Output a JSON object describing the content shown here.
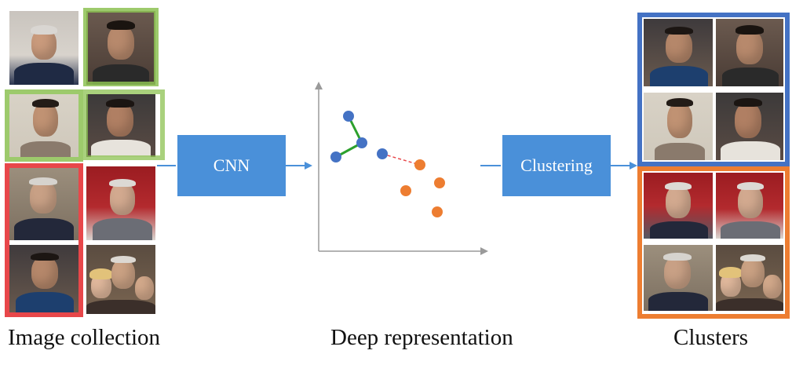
{
  "steps": {
    "cnn_label": "CNN",
    "clustering_label": "Clustering"
  },
  "captions": {
    "input": "Image collection",
    "representation": "Deep representation",
    "output": "Clusters"
  },
  "colors": {
    "process_box": "#4a90d9",
    "arrow": "#4a90d9",
    "cluster_a_frame": "#4472c4",
    "cluster_b_frame": "#ed7d31",
    "highlight_green": "#8cc152",
    "highlight_red": "#e8474a",
    "point_blue": "#4472c4",
    "point_orange": "#ed7d31",
    "link_green": "#2ca02c",
    "link_red": "#e8474a",
    "axis": "#9a9a9a"
  },
  "icons": {
    "input_photos": "face-photo-grid",
    "cluster_photos": "face-photo-grid"
  }
}
